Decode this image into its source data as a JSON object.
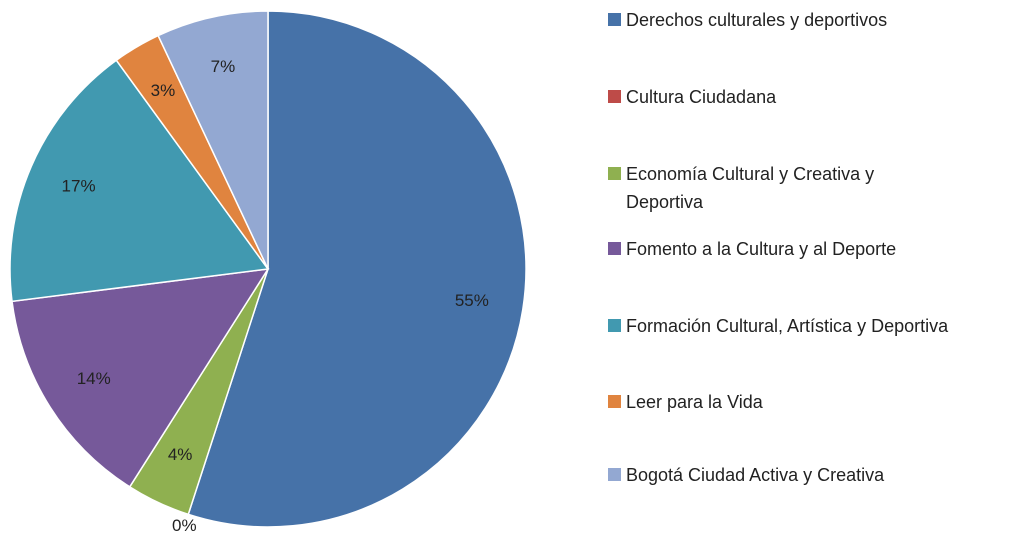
{
  "chart_data": {
    "type": "pie",
    "categories": [
      "Derechos culturales y deportivos",
      "Cultura Ciudadana",
      "Economía Cultural y Creativa y Deportiva",
      "Fomento a la Cultura y al Deporte",
      "Formación Cultural, Artística y Deportiva",
      "Leer para la Vida",
      "Bogotá Ciudad Activa y Creativa"
    ],
    "values": [
      55,
      0,
      4,
      14,
      17,
      3,
      7
    ],
    "value_labels": [
      "55%",
      "0%",
      "4%",
      "14%",
      "17%",
      "3%",
      "7%"
    ],
    "colors": [
      "#4672A8",
      "#BE4B48",
      "#8FB050",
      "#76599A",
      "#4199B0",
      "#E0843F",
      "#93A8D2"
    ],
    "legend": "right"
  }
}
